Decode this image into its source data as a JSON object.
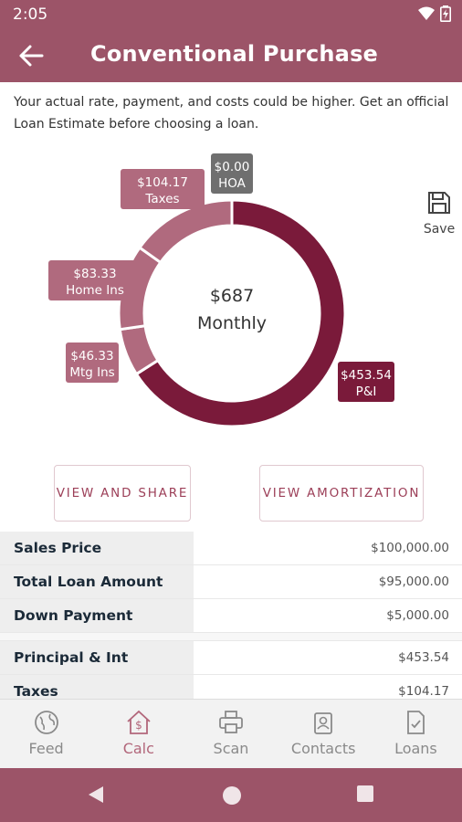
{
  "status_bar": {
    "time": "2:05",
    "icons": [
      "wifi-icon",
      "battery-charging-icon"
    ]
  },
  "header": {
    "title": "Conventional Purchase",
    "back_icon": "arrow-left-icon"
  },
  "disclaimer": "Your actual rate, payment, and costs could be higher. Get an official Loan Estimate before choosing a loan.",
  "chart_data": {
    "type": "pie",
    "center_amount": "$687",
    "center_label": "Monthly",
    "slices": [
      {
        "name": "P&I",
        "value": 453.54,
        "label_amount": "$453.54",
        "color": "#7a1a3a"
      },
      {
        "name": "Mtg Ins",
        "value": 46.33,
        "label_amount": "$46.33",
        "color": "#b06a7e"
      },
      {
        "name": "Home Ins",
        "value": 83.33,
        "label_amount": "$83.33",
        "color": "#b06a7e"
      },
      {
        "name": "Taxes",
        "value": 104.17,
        "label_amount": "$104.17",
        "color": "#b06a7e"
      },
      {
        "name": "HOA",
        "value": 0.0,
        "label_amount": "$0.00",
        "color": "#6f6f6f"
      }
    ]
  },
  "save": {
    "label": "Save",
    "icon": "floppy-disk-icon"
  },
  "buttons": {
    "share": "VIEW AND SHARE",
    "amortization": "VIEW AMORTIZATION"
  },
  "summary": [
    {
      "label": "Sales Price",
      "value": "$100,000.00"
    },
    {
      "label": "Total Loan Amount",
      "value": "$95,000.00"
    },
    {
      "label": "Down Payment",
      "value": "$5,000.00"
    }
  ],
  "breakdown": [
    {
      "label": "Principal & Int",
      "value": "$453.54"
    },
    {
      "label": "Taxes",
      "value": "$104.17"
    }
  ],
  "bottom_nav": [
    {
      "label": "Feed",
      "icon": "globe-icon",
      "active": false
    },
    {
      "label": "Calc",
      "icon": "house-dollar-icon",
      "active": true
    },
    {
      "label": "Scan",
      "icon": "printer-icon",
      "active": false
    },
    {
      "label": "Contacts",
      "icon": "contacts-icon",
      "active": false
    },
    {
      "label": "Loans",
      "icon": "document-check-icon",
      "active": false
    }
  ],
  "system_nav": [
    "back-triangle-icon",
    "home-circle-icon",
    "recents-square-icon"
  ],
  "colors": {
    "brand": "#9c5468",
    "primary_slice": "#7a1a3a",
    "secondary_slice": "#b06a7e",
    "hoa": "#6f6f6f"
  }
}
